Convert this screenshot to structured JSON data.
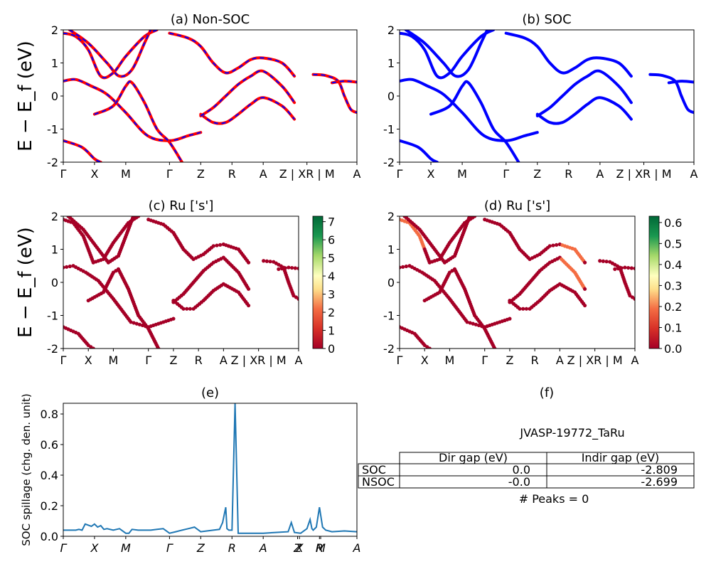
{
  "chart_data": [
    {
      "type": "line",
      "title": "(a) Non-SOC",
      "ylabel": "E − E_f (eV)",
      "ylim": [
        -2,
        2
      ],
      "yticks": [
        -2,
        -1,
        0,
        1,
        2
      ],
      "xticks": [
        "Γ",
        "X",
        "M",
        "Γ",
        "Z",
        "R",
        "A",
        "Z | XR | M",
        "A"
      ],
      "xtick_positions": [
        0,
        0.5,
        1.0,
        1.7,
        2.2,
        2.7,
        3.2,
        3.9,
        4.7
      ],
      "series": [
        {
          "bands": [
            [
              [
                0,
                -1.35
              ],
              [
                0.3,
                -1.55
              ],
              [
                0.5,
                -1.9
              ],
              [
                0.6,
                -2.0
              ]
            ],
            [
              [
                0,
                0.45
              ],
              [
                0.2,
                0.5
              ],
              [
                0.45,
                0.3
              ],
              [
                0.7,
                0.05
              ],
              [
                1.0,
                -0.5
              ],
              [
                1.35,
                -1.2
              ],
              [
                1.7,
                -1.35
              ],
              [
                2.0,
                -1.2
              ],
              [
                2.2,
                -1.1
              ]
            ],
            [
              [
                0,
                1.9
              ],
              [
                0.2,
                1.8
              ],
              [
                0.4,
                1.4
              ],
              [
                0.6,
                0.6
              ],
              [
                0.8,
                0.7
              ],
              [
                1.0,
                1.2
              ],
              [
                1.3,
                1.8
              ],
              [
                1.5,
                2.0
              ]
            ],
            [
              [
                0.1,
                2.0
              ],
              [
                0.4,
                1.6
              ],
              [
                0.7,
                1.0
              ],
              [
                0.9,
                0.6
              ],
              [
                1.1,
                0.8
              ],
              [
                1.3,
                1.6
              ],
              [
                1.4,
                2.0
              ]
            ],
            [
              [
                0.5,
                -0.55
              ],
              [
                0.8,
                -0.3
              ],
              [
                1.0,
                0.3
              ],
              [
                1.1,
                0.4
              ],
              [
                1.3,
                -0.2
              ],
              [
                1.5,
                -1.0
              ],
              [
                1.7,
                -1.4
              ],
              [
                1.9,
                -2.0
              ]
            ],
            [
              [
                1.7,
                1.9
              ],
              [
                2.0,
                1.75
              ],
              [
                2.2,
                1.5
              ],
              [
                2.4,
                1.0
              ],
              [
                2.6,
                0.7
              ],
              [
                2.8,
                0.85
              ],
              [
                3.0,
                1.1
              ],
              [
                3.2,
                1.15
              ],
              [
                3.5,
                1.0
              ],
              [
                3.7,
                0.6
              ]
            ],
            [
              [
                2.2,
                -0.55
              ],
              [
                2.4,
                -0.8
              ],
              [
                2.6,
                -0.8
              ],
              [
                2.8,
                -0.55
              ],
              [
                3.0,
                -0.25
              ],
              [
                3.2,
                -0.05
              ],
              [
                3.5,
                -0.3
              ],
              [
                3.7,
                -0.7
              ]
            ],
            [
              [
                2.2,
                -0.6
              ],
              [
                2.4,
                -0.35
              ],
              [
                2.6,
                0.0
              ],
              [
                2.8,
                0.35
              ],
              [
                3.0,
                0.6
              ],
              [
                3.2,
                0.75
              ],
              [
                3.5,
                0.3
              ],
              [
                3.7,
                -0.2
              ]
            ],
            [
              [
                4.0,
                0.65
              ],
              [
                4.2,
                0.62
              ],
              [
                4.4,
                0.45
              ],
              [
                4.5,
                0.0
              ],
              [
                4.6,
                -0.4
              ],
              [
                4.7,
                -0.5
              ]
            ],
            [
              [
                4.3,
                0.4
              ],
              [
                4.5,
                0.45
              ],
              [
                4.7,
                0.42
              ]
            ]
          ]
        }
      ],
      "colors": {
        "line": "#ff0000",
        "dash": "#0000ff"
      }
    },
    {
      "type": "line",
      "title": "(b) SOC",
      "ylim": [
        -2,
        2
      ],
      "yticks": [
        -2,
        -1,
        0,
        1,
        2
      ],
      "xticks": [
        "Γ",
        "X",
        "M",
        "Γ",
        "Z",
        "R",
        "A",
        "Z | XR | M",
        "A"
      ],
      "xtick_positions": [
        0,
        0.5,
        1.0,
        1.7,
        2.2,
        2.7,
        3.2,
        3.9,
        4.7
      ],
      "series": [
        {
          "bands": [
            [
              [
                0,
                -1.35
              ],
              [
                0.3,
                -1.55
              ],
              [
                0.5,
                -1.9
              ],
              [
                0.6,
                -2.0
              ]
            ],
            [
              [
                0,
                0.45
              ],
              [
                0.2,
                0.5
              ],
              [
                0.45,
                0.3
              ],
              [
                0.7,
                0.05
              ],
              [
                1.0,
                -0.5
              ],
              [
                1.35,
                -1.2
              ],
              [
                1.7,
                -1.35
              ],
              [
                2.0,
                -1.2
              ],
              [
                2.2,
                -1.1
              ]
            ],
            [
              [
                0,
                1.9
              ],
              [
                0.2,
                1.8
              ],
              [
                0.4,
                1.4
              ],
              [
                0.6,
                0.6
              ],
              [
                0.8,
                0.7
              ],
              [
                1.0,
                1.2
              ],
              [
                1.3,
                1.8
              ],
              [
                1.5,
                2.0
              ]
            ],
            [
              [
                0.1,
                2.0
              ],
              [
                0.4,
                1.6
              ],
              [
                0.7,
                1.0
              ],
              [
                0.9,
                0.6
              ],
              [
                1.1,
                0.8
              ],
              [
                1.3,
                1.6
              ],
              [
                1.4,
                2.0
              ]
            ],
            [
              [
                0.5,
                -0.55
              ],
              [
                0.8,
                -0.3
              ],
              [
                1.0,
                0.3
              ],
              [
                1.1,
                0.4
              ],
              [
                1.3,
                -0.2
              ],
              [
                1.5,
                -1.0
              ],
              [
                1.7,
                -1.4
              ],
              [
                1.9,
                -2.0
              ]
            ],
            [
              [
                1.7,
                1.9
              ],
              [
                2.0,
                1.75
              ],
              [
                2.2,
                1.5
              ],
              [
                2.4,
                1.0
              ],
              [
                2.6,
                0.7
              ],
              [
                2.8,
                0.85
              ],
              [
                3.0,
                1.1
              ],
              [
                3.2,
                1.15
              ],
              [
                3.5,
                1.0
              ],
              [
                3.7,
                0.6
              ]
            ],
            [
              [
                2.2,
                -0.55
              ],
              [
                2.4,
                -0.8
              ],
              [
                2.6,
                -0.8
              ],
              [
                2.8,
                -0.55
              ],
              [
                3.0,
                -0.25
              ],
              [
                3.2,
                -0.05
              ],
              [
                3.5,
                -0.3
              ],
              [
                3.7,
                -0.7
              ]
            ],
            [
              [
                2.2,
                -0.6
              ],
              [
                2.4,
                -0.35
              ],
              [
                2.6,
                0.0
              ],
              [
                2.8,
                0.35
              ],
              [
                3.0,
                0.6
              ],
              [
                3.2,
                0.75
              ],
              [
                3.5,
                0.3
              ],
              [
                3.7,
                -0.2
              ]
            ],
            [
              [
                4.0,
                0.65
              ],
              [
                4.2,
                0.62
              ],
              [
                4.4,
                0.45
              ],
              [
                4.5,
                0.0
              ],
              [
                4.6,
                -0.4
              ],
              [
                4.7,
                -0.5
              ]
            ],
            [
              [
                4.3,
                0.4
              ],
              [
                4.5,
                0.45
              ],
              [
                4.7,
                0.42
              ]
            ]
          ]
        }
      ],
      "colors": {
        "line": "#0000ff"
      }
    },
    {
      "type": "scatter",
      "title": "(c)  Ru ['s']",
      "ylabel": "E − E_f (eV)",
      "ylim": [
        -2,
        2
      ],
      "yticks": [
        -2,
        -1,
        0,
        1,
        2
      ],
      "xticks": [
        "Γ",
        "X",
        "M",
        "Γ",
        "Z",
        "R",
        "A",
        "Z | XR | M",
        "A"
      ],
      "xtick_positions": [
        0,
        0.5,
        1.0,
        1.7,
        2.2,
        2.7,
        3.2,
        3.9,
        4.7
      ],
      "colorbar": {
        "min": 0,
        "max": 7.3,
        "ticks": [
          "0",
          "1",
          "2",
          "3",
          "4",
          "5",
          "6",
          "7"
        ]
      },
      "point_color": "#a50026"
    },
    {
      "type": "scatter",
      "title": "(d) Ru ['s']",
      "ylim": [
        -2,
        2
      ],
      "yticks": [
        -2,
        -1,
        0,
        1,
        2
      ],
      "xticks": [
        "Γ",
        "X",
        "M",
        "Γ",
        "Z",
        "R",
        "A",
        "Z | XR | M",
        "A"
      ],
      "xtick_positions": [
        0,
        0.5,
        1.0,
        1.7,
        2.2,
        2.7,
        3.2,
        3.9,
        4.7
      ],
      "colorbar": {
        "min": 0,
        "max": 0.63,
        "ticks": [
          "0.0",
          "0.1",
          "0.2",
          "0.3",
          "0.4",
          "0.5",
          "0.6"
        ]
      },
      "point_color": "#a50026",
      "highlight_color": "#f46d43"
    },
    {
      "type": "line",
      "title": "(e)",
      "ylabel": "SOC spillage (chg. den. unit)",
      "ylim": [
        0,
        0.87
      ],
      "yticks": [
        "0.0",
        "0.2",
        "0.4",
        "0.6",
        "0.8"
      ],
      "ytick_values": [
        0,
        0.2,
        0.4,
        0.6,
        0.8
      ],
      "xticks": [
        "Γ",
        "X",
        "M",
        "Γ",
        "Z",
        "R",
        "A",
        "Z",
        "X",
        "R",
        "M",
        "A"
      ],
      "xtick_positions": [
        0,
        0.5,
        1.0,
        1.7,
        2.2,
        2.7,
        3.2,
        3.75,
        3.78,
        4.1,
        4.12,
        4.7
      ],
      "series": [
        {
          "x": [
            0,
            0.1,
            0.2,
            0.25,
            0.3,
            0.35,
            0.45,
            0.5,
            0.55,
            0.6,
            0.65,
            0.7,
            0.8,
            0.9,
            1.0,
            1.05,
            1.1,
            1.2,
            1.3,
            1.4,
            1.5,
            1.6,
            1.7,
            1.8,
            1.9,
            2.0,
            2.1,
            2.2,
            2.3,
            2.4,
            2.5,
            2.55,
            2.6,
            2.62,
            2.65,
            2.7,
            2.75,
            2.8,
            2.85,
            2.9,
            3.0,
            3.2,
            3.4,
            3.6,
            3.65,
            3.7,
            3.8,
            3.9,
            3.95,
            3.98,
            4.0,
            4.05,
            4.1,
            4.15,
            4.2,
            4.3,
            4.5,
            4.7
          ],
          "y": [
            0.04,
            0.04,
            0.04,
            0.045,
            0.04,
            0.08,
            0.065,
            0.08,
            0.06,
            0.07,
            0.045,
            0.05,
            0.04,
            0.05,
            0.02,
            0.02,
            0.045,
            0.04,
            0.04,
            0.04,
            0.045,
            0.05,
            0.02,
            0.03,
            0.04,
            0.05,
            0.06,
            0.03,
            0.035,
            0.04,
            0.045,
            0.09,
            0.19,
            0.05,
            0.04,
            0.04,
            0.87,
            0.02,
            0.02,
            0.02,
            0.02,
            0.02,
            0.025,
            0.03,
            0.09,
            0.025,
            0.02,
            0.05,
            0.11,
            0.05,
            0.04,
            0.06,
            0.19,
            0.06,
            0.04,
            0.03,
            0.035,
            0.03
          ]
        }
      ],
      "colors": {
        "line": "#1f77b4"
      }
    }
  ],
  "panel_f": {
    "title": "(f)",
    "material": "JVASP-19772_TaRu",
    "table": {
      "headers": [
        "",
        "Dir gap (eV)",
        "Indir gap (eV)"
      ],
      "rows": [
        [
          "SOC",
          "0.0",
          "-2.809"
        ],
        [
          "NSOC",
          "-0.0",
          "-2.699"
        ]
      ]
    },
    "peaks": "# Peaks = 0"
  }
}
